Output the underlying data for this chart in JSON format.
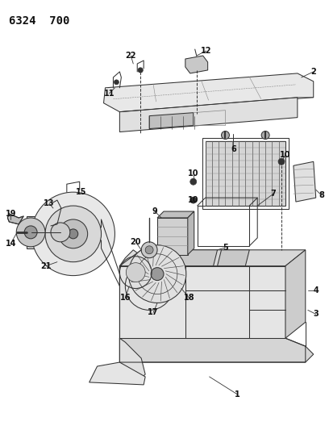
{
  "title": "6324 700",
  "bg_color": "#ffffff",
  "fig_width": 4.08,
  "fig_height": 5.33,
  "dpi": 100,
  "line_color": "#333333",
  "lw": 0.75
}
